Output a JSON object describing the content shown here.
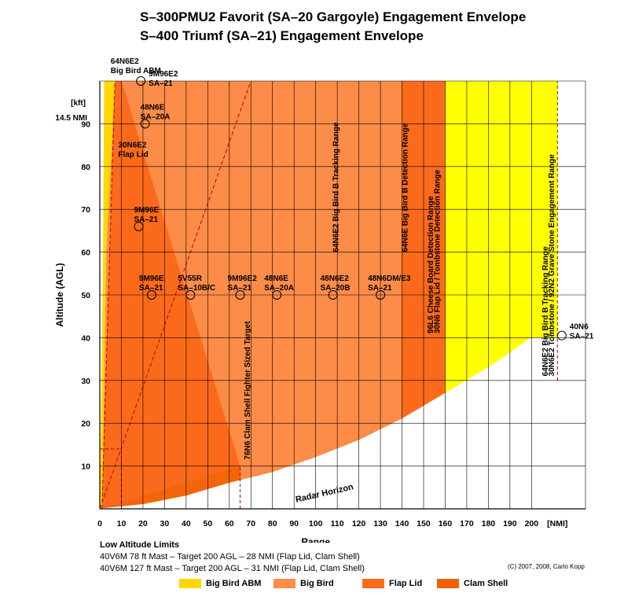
{
  "titles": {
    "line1": "S–300PMU2 Favorit (SA–20 Gargoyle) Engagement Envelope",
    "line2": "S–400 Triumf (SA–21) Engagement Envelope"
  },
  "chart_data": {
    "type": "area",
    "xlabel": "Range",
    "ylabel": "Altitude (AGL)",
    "x_unit_label": "[NMI]",
    "y_unit_label": "[kft]",
    "y_extra_tick": "14.5 NMI",
    "xlim": [
      0,
      225
    ],
    "ylim": [
      0,
      100
    ],
    "x_ticks": [
      0,
      10,
      20,
      30,
      40,
      50,
      60,
      70,
      80,
      90,
      100,
      110,
      120,
      130,
      140,
      150,
      160,
      170,
      180,
      190,
      200
    ],
    "x_tick_labels": [
      "0",
      "10",
      "20",
      "30",
      "40",
      "50",
      "60",
      "70",
      "80",
      "90",
      "100",
      "110",
      "120",
      "130",
      "140",
      "150",
      "160",
      "170",
      "180",
      "190",
      "200"
    ],
    "y_ticks": [
      10,
      20,
      30,
      40,
      50,
      60,
      70,
      80,
      90
    ],
    "y_tick_labels": [
      "10",
      "20",
      "30",
      "40",
      "50",
      "60",
      "70",
      "80",
      "90"
    ],
    "grid": true,
    "series": [
      {
        "name": "Big Bird ABM",
        "color": "#ffd800"
      },
      {
        "name": "Big Bird",
        "color": "#fc8c48"
      },
      {
        "name": "Flap Lid",
        "color": "#fb6a1a"
      },
      {
        "name": "Clam Shell",
        "color": "#f06000"
      }
    ],
    "detection_zone_color": "#ffff00",
    "radar_horizon": {
      "label": "Radar Horizon",
      "points": [
        [
          0,
          0
        ],
        [
          20,
          1
        ],
        [
          40,
          3
        ],
        [
          60,
          6
        ],
        [
          80,
          8.5
        ],
        [
          100,
          12
        ],
        [
          120,
          16
        ],
        [
          140,
          21
        ],
        [
          160,
          27
        ],
        [
          180,
          33
        ],
        [
          200,
          40
        ]
      ]
    },
    "range_lines": [
      {
        "label": "64N6E2 Big Bird B Tracking Range",
        "x": 108
      },
      {
        "label": "64N6E Big Bird B Detection Range",
        "x": 140
      },
      {
        "label": "96L6 Cheese Board Detection Range",
        "x": 160
      },
      {
        "label": "30N6 Flap Lid / Tombstone Detection Range",
        "x": 160
      },
      {
        "label": "64N6E2 Big Bird B Tracking Range",
        "x": 212
      },
      {
        "label": "30N6E2 Tombstone / 92N2 Grave Stone Engagement Range",
        "x": 212
      },
      {
        "label": "76N6 Clam Shell Fighter Sized Target",
        "x": 65
      }
    ],
    "missiles": [
      {
        "line1": "64N6E2",
        "line2": "Big Bird ABM",
        "x": 0,
        "y": 100
      },
      {
        "line1": "9M96E2",
        "line2": "SA–21",
        "x": 19,
        "y": 100
      },
      {
        "line1": "48N6E",
        "line2": "SA–20A",
        "x": 21,
        "y": 90
      },
      {
        "line1": "30N6E2",
        "line2": "Flap Lid",
        "x": 10,
        "y": 85
      },
      {
        "line1": "9M96E",
        "line2": "SA–21",
        "x": 18,
        "y": 66
      },
      {
        "line1": "9M96E",
        "line2": "SA–21",
        "x": 24,
        "y": 50
      },
      {
        "line1": "5V55R",
        "line2": "SA–10B/C",
        "x": 42,
        "y": 50
      },
      {
        "line1": "9M96E2",
        "line2": "SA–21",
        "x": 65,
        "y": 50
      },
      {
        "line1": "48N6E",
        "line2": "SA–20A",
        "x": 82,
        "y": 50
      },
      {
        "line1": "48N6E2",
        "line2": "SA–20B",
        "x": 108,
        "y": 50
      },
      {
        "line1": "48N6DM/E3",
        "line2": "SA–21",
        "x": 130,
        "y": 50
      },
      {
        "line1": "40N6",
        "line2": "SA–21",
        "x": 214,
        "y": 40.5
      }
    ]
  },
  "notes": {
    "heading": "Low Altitude Limits",
    "line1": "40V6M 78 ft Mast – Target 200 AGL – 28 NMI (Flap Lid, Clam Shell)",
    "line2": "40V6M 127 ft Mast – Target 200 AGL – 31 NMI (Flap Lid, Clam Shell)"
  },
  "copyright": "(C) 2007, 2008, Carlo Kopp",
  "legend": [
    {
      "label": "Big Bird ABM",
      "color": "#ffd800"
    },
    {
      "label": "Big Bird",
      "color": "#fc8c48"
    },
    {
      "label": "Flap Lid",
      "color": "#fb6a1a"
    },
    {
      "label": "Clam Shell",
      "color": "#f06000"
    }
  ]
}
